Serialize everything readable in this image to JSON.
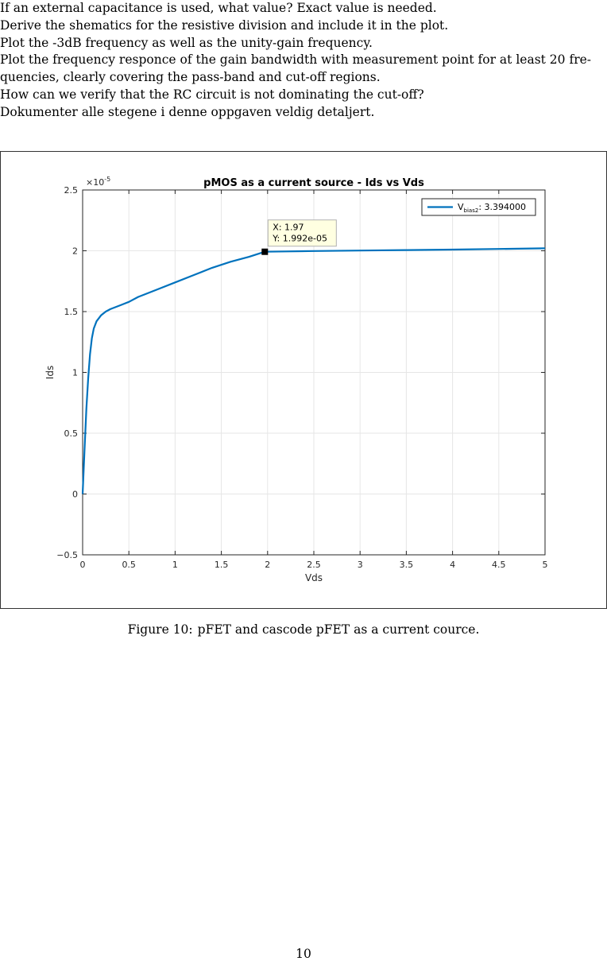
{
  "document": {
    "lines": [
      "If an external capacitance is used, what value? Exact value is needed.",
      "Derive the shematics for the resistive division and include it in the plot.",
      "Plot the -3dB frequency as well as the unity-gain frequency.",
      "Plot the frequency responce of the gain bandwidth with measurement point for at least 20 fre-",
      "quencies, clearly covering the pass-band and cut-off regions.",
      "How can we verify that the RC circuit is not dominating the cut-off?",
      "Dokumenter alle stegene i denne oppgaven veldig detaljert."
    ],
    "caption_label": "Figure 10:",
    "caption_text": "pFET and cascode pFET as a current cource.",
    "page_number": "10"
  },
  "chart_data": {
    "type": "line",
    "title": "pMOS as a current source - Ids vs Vds",
    "xlabel": "Vds",
    "ylabel": "Ids",
    "y_exponent_label": "×10",
    "y_exponent_power": "-5",
    "xlim": [
      0,
      5
    ],
    "ylim": [
      -0.5,
      2.5
    ],
    "x_ticks": [
      "0",
      "0.5",
      "1",
      "1.5",
      "2",
      "2.5",
      "3",
      "3.5",
      "4",
      "4.5",
      "5"
    ],
    "y_ticks": [
      "-0.5",
      "0",
      "0.5",
      "1",
      "1.5",
      "2",
      "2.5"
    ],
    "grid": true,
    "legend_position": "top-right",
    "series": [
      {
        "name_main": "V",
        "name_sub": "bias2",
        "name_suffix": ": 3.394000",
        "color": "#0072BD",
        "x": [
          0,
          0.02,
          0.04,
          0.06,
          0.08,
          0.1,
          0.12,
          0.15,
          0.2,
          0.25,
          0.3,
          0.4,
          0.5,
          0.6,
          0.8,
          1.0,
          1.2,
          1.4,
          1.6,
          1.8,
          1.97,
          2.2,
          2.5,
          3.0,
          3.5,
          4.0,
          4.5,
          5.0
        ],
        "y": [
          0.0,
          0.35,
          0.7,
          0.95,
          1.15,
          1.28,
          1.36,
          1.42,
          1.47,
          1.5,
          1.52,
          1.55,
          1.58,
          1.62,
          1.68,
          1.74,
          1.8,
          1.86,
          1.91,
          1.95,
          1.992,
          1.995,
          1.998,
          2.002,
          2.006,
          2.01,
          2.015,
          2.02
        ]
      }
    ],
    "datatip": {
      "x": 1.97,
      "y": 1.992,
      "x_text": "X: 1.97",
      "y_text": "Y: 1.992e-05"
    }
  }
}
